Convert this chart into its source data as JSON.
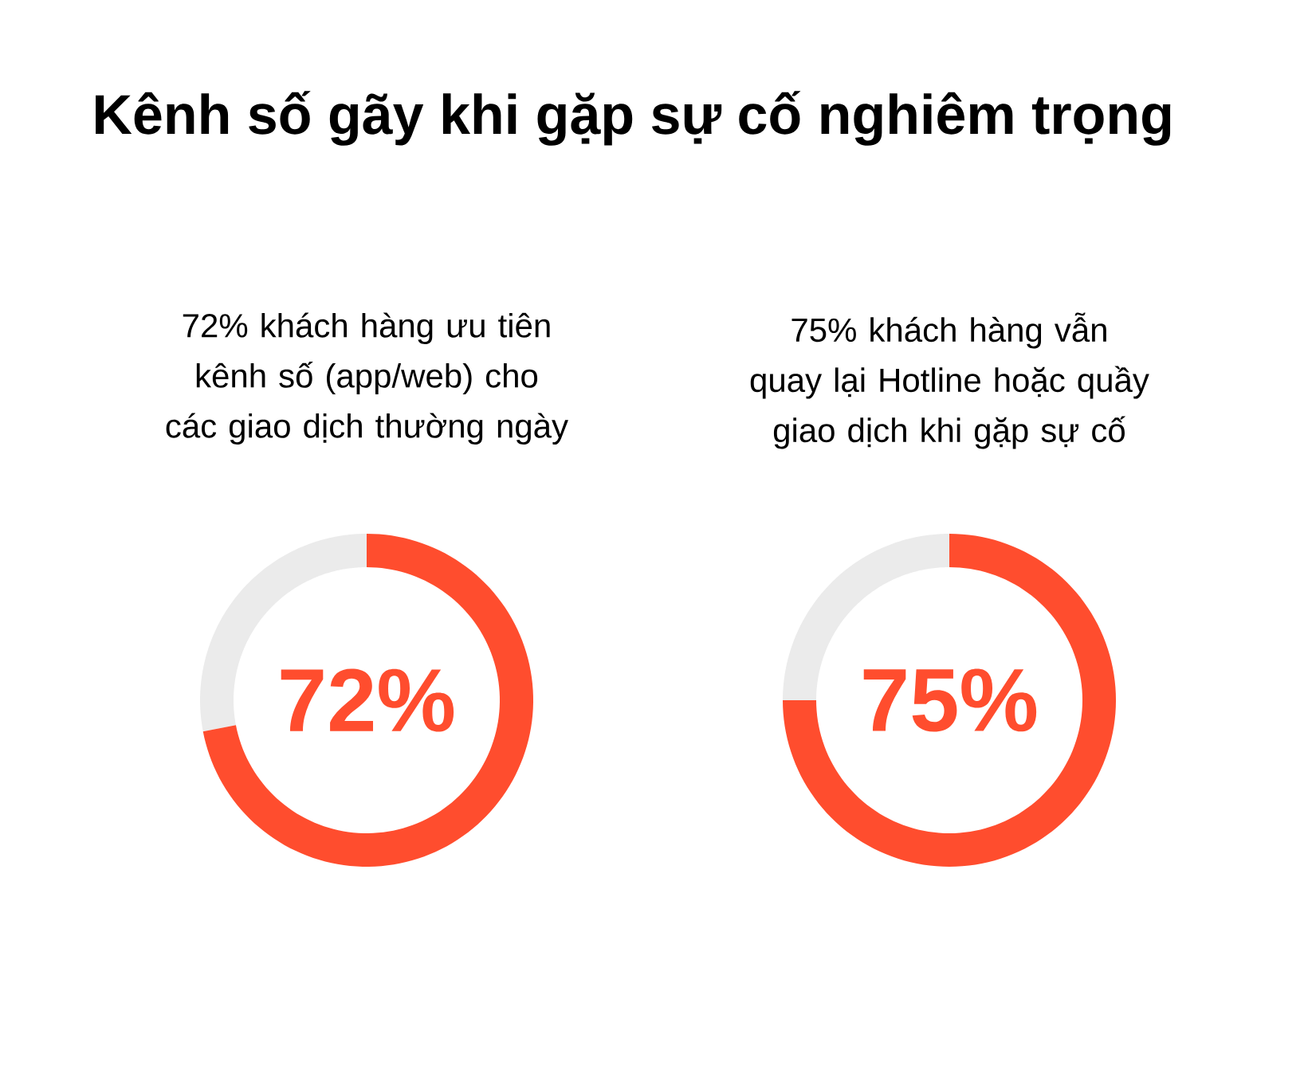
{
  "chart_data": [
    {
      "type": "other",
      "title": "Kênh số gãy khi gặp sự cố nghiêm trọng"
    },
    {
      "type": "donut",
      "title": "72% khách hàng ưu tiên kênh số (app/web) cho các giao dịch thường ngày",
      "categories": [
        null,
        null
      ],
      "values": [
        72,
        28
      ],
      "colors": [
        "#ff4d2e",
        "#ebebeb"
      ],
      "value_labels": [
        "72%",
        null
      ]
    },
    {
      "type": "donut",
      "title": "75% khách hàng vẫn quay lại Hotline hoặc quầy giao dịch khi gặp sự cố",
      "categories": [
        null,
        null
      ],
      "values": [
        75,
        25
      ],
      "colors": [
        "#ff4d2e",
        "#ebebeb"
      ],
      "value_labels": [
        "75%",
        null
      ]
    }
  ]
}
